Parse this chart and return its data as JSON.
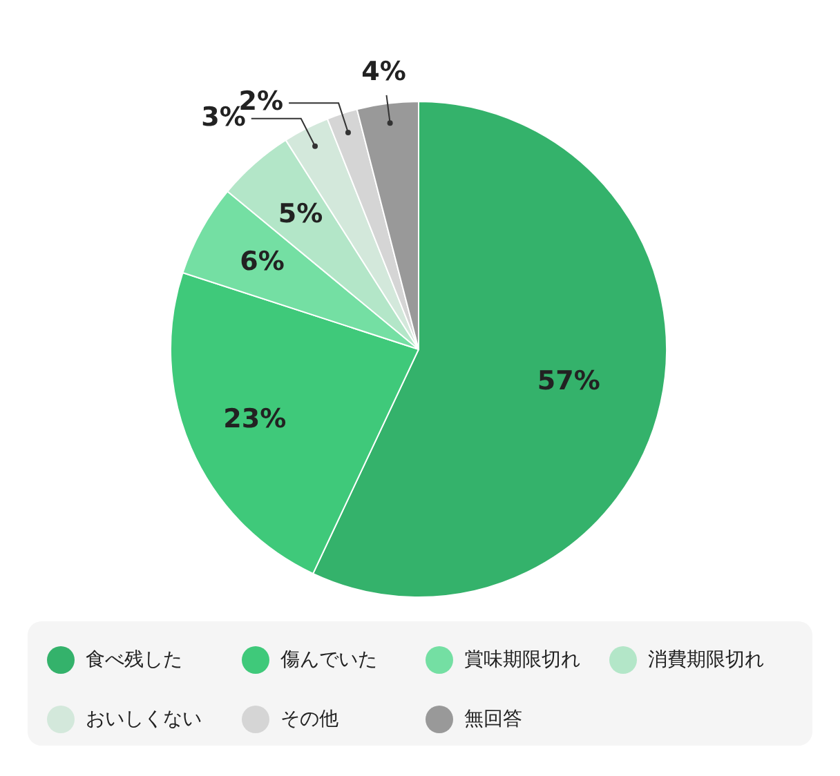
{
  "chart_data": {
    "type": "pie",
    "categories": [
      "食べ残した",
      "傷んでいた",
      "賞味期限切れ",
      "消費期限切れ",
      "おいしくない",
      "その他",
      "無回答"
    ],
    "values": [
      57,
      23,
      6,
      5,
      3,
      2,
      4
    ],
    "colors": [
      "#34b26b",
      "#3fc97a",
      "#74dfa3",
      "#b3e6c8",
      "#d3e8db",
      "#d5d5d5",
      "#999999"
    ],
    "value_labels": [
      "57%",
      "23%",
      "6%",
      "5%",
      "3%",
      "2%",
      "4%"
    ],
    "legend": "bottom"
  }
}
